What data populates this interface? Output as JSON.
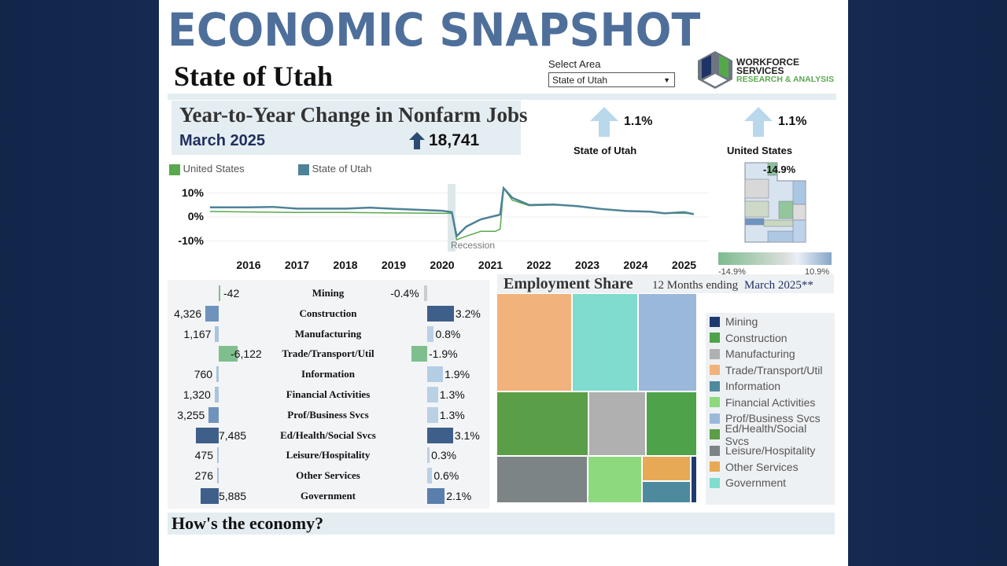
{
  "header": {
    "title": "ECONOMIC SNAPSHOT",
    "area_name": "State of Utah",
    "select_label": "Select Area",
    "select_value": "State of Utah",
    "logo": {
      "line1": "WORKFORCE",
      "line2": "SERVICES",
      "line3": "RESEARCH & ANALYSIS"
    }
  },
  "jobs": {
    "title": "Year-to-Year Change in Nonfarm Jobs",
    "date": "March 2025",
    "change": "18,741",
    "utah_pct": "1.1%",
    "utah_label": "State of Utah",
    "us_pct": "1.1%",
    "us_label": "United States"
  },
  "map": {
    "highlight_label": "-14.9%",
    "scale_min": "-14.9%",
    "scale_max": "10.9%"
  },
  "chart_data": {
    "type": "line",
    "legend": [
      "United States",
      "State of Utah"
    ],
    "colors": {
      "United States": "#5aa84f",
      "State of Utah": "#4e8397"
    },
    "ylabel": "",
    "xlabel": "",
    "ylim": [
      -10,
      10
    ],
    "yticks": [
      "10%",
      "0%",
      "-10%"
    ],
    "xticks": [
      "2016",
      "2017",
      "2018",
      "2019",
      "2020",
      "2021",
      "2022",
      "2023",
      "2024",
      "2025"
    ],
    "annotation": "Recession",
    "series": [
      {
        "name": "State of Utah",
        "x": [
          2015.2,
          2016,
          2016.5,
          2017,
          2018,
          2018.5,
          2019,
          2019.5,
          2020,
          2020.2,
          2020.3,
          2020.5,
          2020.8,
          2021.1,
          2021.2,
          2021.27,
          2021.45,
          2021.8,
          2022.3,
          2022.8,
          2023.3,
          2023.8,
          2024.3,
          2024.6,
          2025,
          2025.2
        ],
        "values": [
          4,
          4,
          4.2,
          3.5,
          3.5,
          3.9,
          3.4,
          3,
          2.6,
          2,
          -8,
          -4,
          -1,
          0.5,
          1,
          12,
          8,
          5,
          5.2,
          4.5,
          3.3,
          2.5,
          2.2,
          1.5,
          2,
          1.2
        ]
      },
      {
        "name": "United States",
        "x": [
          2015.2,
          2016,
          2017,
          2018,
          2019,
          2020,
          2020.2,
          2020.3,
          2020.5,
          2020.8,
          2021.1,
          2021.2,
          2021.27,
          2021.45,
          2021.8,
          2022.3,
          2022.8,
          2023.3,
          2023.8,
          2024.3,
          2024.6,
          2025,
          2025.2
        ],
        "values": [
          2.3,
          2.1,
          1.9,
          1.9,
          1.7,
          1.5,
          1.5,
          -9.5,
          -8,
          -6,
          -6,
          -5,
          12,
          7,
          4.7,
          5,
          4.5,
          3.3,
          2.5,
          2.2,
          1.5,
          1.6,
          1.2
        ]
      }
    ]
  },
  "industries": {
    "rows": [
      {
        "name": "Mining",
        "jobs": -42,
        "jobs_label": "-42",
        "pct": -0.4,
        "pct_label": "-0.4%"
      },
      {
        "name": "Construction",
        "jobs": 4326,
        "jobs_label": "4,326",
        "pct": 3.2,
        "pct_label": "3.2%"
      },
      {
        "name": "Manufacturing",
        "jobs": 1167,
        "jobs_label": "1,167",
        "pct": 0.8,
        "pct_label": "0.8%"
      },
      {
        "name": "Trade/Transport/Util",
        "jobs": -6122,
        "jobs_label": "-6,122",
        "pct": -1.9,
        "pct_label": "-1.9%"
      },
      {
        "name": "Information",
        "jobs": 760,
        "jobs_label": "760",
        "pct": 1.9,
        "pct_label": "1.9%"
      },
      {
        "name": "Financial Activities",
        "jobs": 1320,
        "jobs_label": "1,320",
        "pct": 1.3,
        "pct_label": "1.3%"
      },
      {
        "name": "Prof/Business Svcs",
        "jobs": 3255,
        "jobs_label": "3,255",
        "pct": 1.3,
        "pct_label": "1.3%"
      },
      {
        "name": "Ed/Health/Social Svcs",
        "jobs": 7485,
        "jobs_label": "7,485",
        "pct": 3.1,
        "pct_label": "3.1%"
      },
      {
        "name": "Leisure/Hospitality",
        "jobs": 475,
        "jobs_label": "475",
        "pct": 0.3,
        "pct_label": "0.3%"
      },
      {
        "name": "Other Services",
        "jobs": 276,
        "jobs_label": "276",
        "pct": 0.6,
        "pct_label": "0.6%"
      },
      {
        "name": "Government",
        "jobs": 5885,
        "jobs_label": "5,885",
        "pct": 2.1,
        "pct_label": "2.1%"
      }
    ]
  },
  "employment_share": {
    "title": "Employment Share",
    "subtitle": "12 Months ending",
    "date": "March 2025**",
    "legend": [
      {
        "name": "Mining",
        "color": "#1f3a6e"
      },
      {
        "name": "Construction",
        "color": "#4ea24a"
      },
      {
        "name": "Manufacturing",
        "color": "#b0b0b0"
      },
      {
        "name": "Trade/Transport/Util",
        "color": "#f2b27b"
      },
      {
        "name": "Information",
        "color": "#4e8a9e"
      },
      {
        "name": "Financial Activities",
        "color": "#8cd97e"
      },
      {
        "name": "Prof/Business Svcs",
        "color": "#9ab8da"
      },
      {
        "name": "Ed/Health/Social Svcs",
        "color": "#5b9e48"
      },
      {
        "name": "Leisure/Hospitality",
        "color": "#7d8486"
      },
      {
        "name": "Other Services",
        "color": "#e7a955"
      },
      {
        "name": "Government",
        "color": "#7fdcce"
      }
    ]
  },
  "footer": {
    "question": "How's the economy?"
  }
}
